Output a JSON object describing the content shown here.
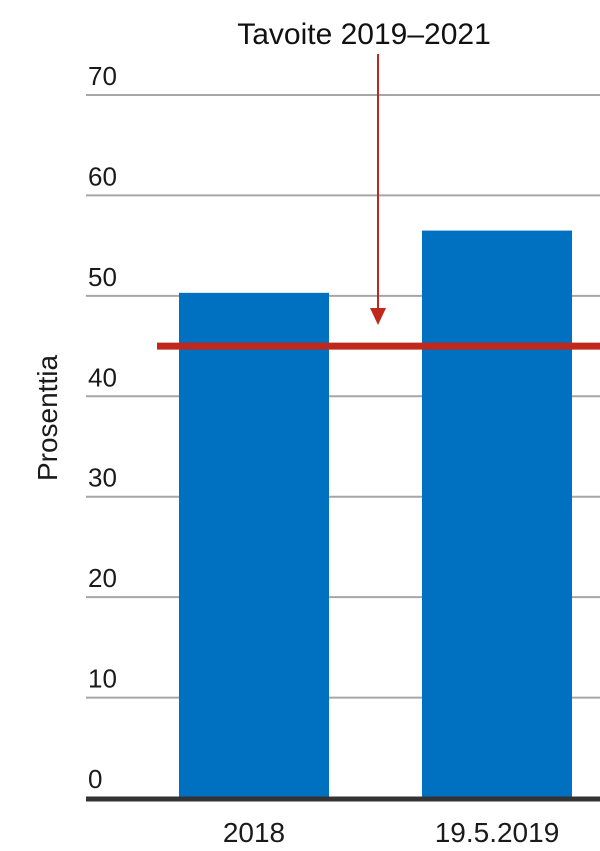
{
  "chart_data": {
    "type": "bar",
    "title": "",
    "xlabel": "",
    "ylabel": "Prosenttia",
    "ylim": [
      0,
      70
    ],
    "yticks": [
      0,
      10,
      20,
      30,
      40,
      50,
      60,
      70
    ],
    "grid": true,
    "categories": [
      "2018",
      "19.5.2019"
    ],
    "values": [
      50.3,
      56.5
    ],
    "bar_color": "#0070c0",
    "target": {
      "label": "Tavoite 2019–2021",
      "value": 45,
      "color": "#c0281c"
    },
    "gridline_color": "#a6a6a6",
    "baseline_color": "#333333"
  }
}
